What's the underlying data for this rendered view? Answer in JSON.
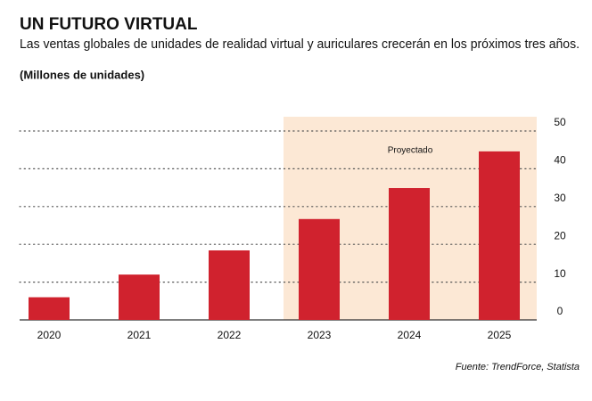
{
  "chart_data": {
    "type": "bar",
    "title": "UN FUTURO VIRTUAL",
    "subtitle": "Las ventas globales de unidades de realidad virtual y auriculares crecerán en los próximos tres años.",
    "y_label": "(Millones de unidades)",
    "annotation": "Proyectado",
    "source": "Fuente: TrendForce, Statista",
    "categories": [
      "2020",
      "2021",
      "2022",
      "2023",
      "2024",
      "2025"
    ],
    "values": [
      6,
      12,
      18.4,
      26.7,
      34.9,
      44.6
    ],
    "color": "#d0222e",
    "ylim": [
      0,
      50
    ],
    "yticks": [
      0,
      10,
      20,
      30,
      40,
      50
    ],
    "grid": true
  }
}
